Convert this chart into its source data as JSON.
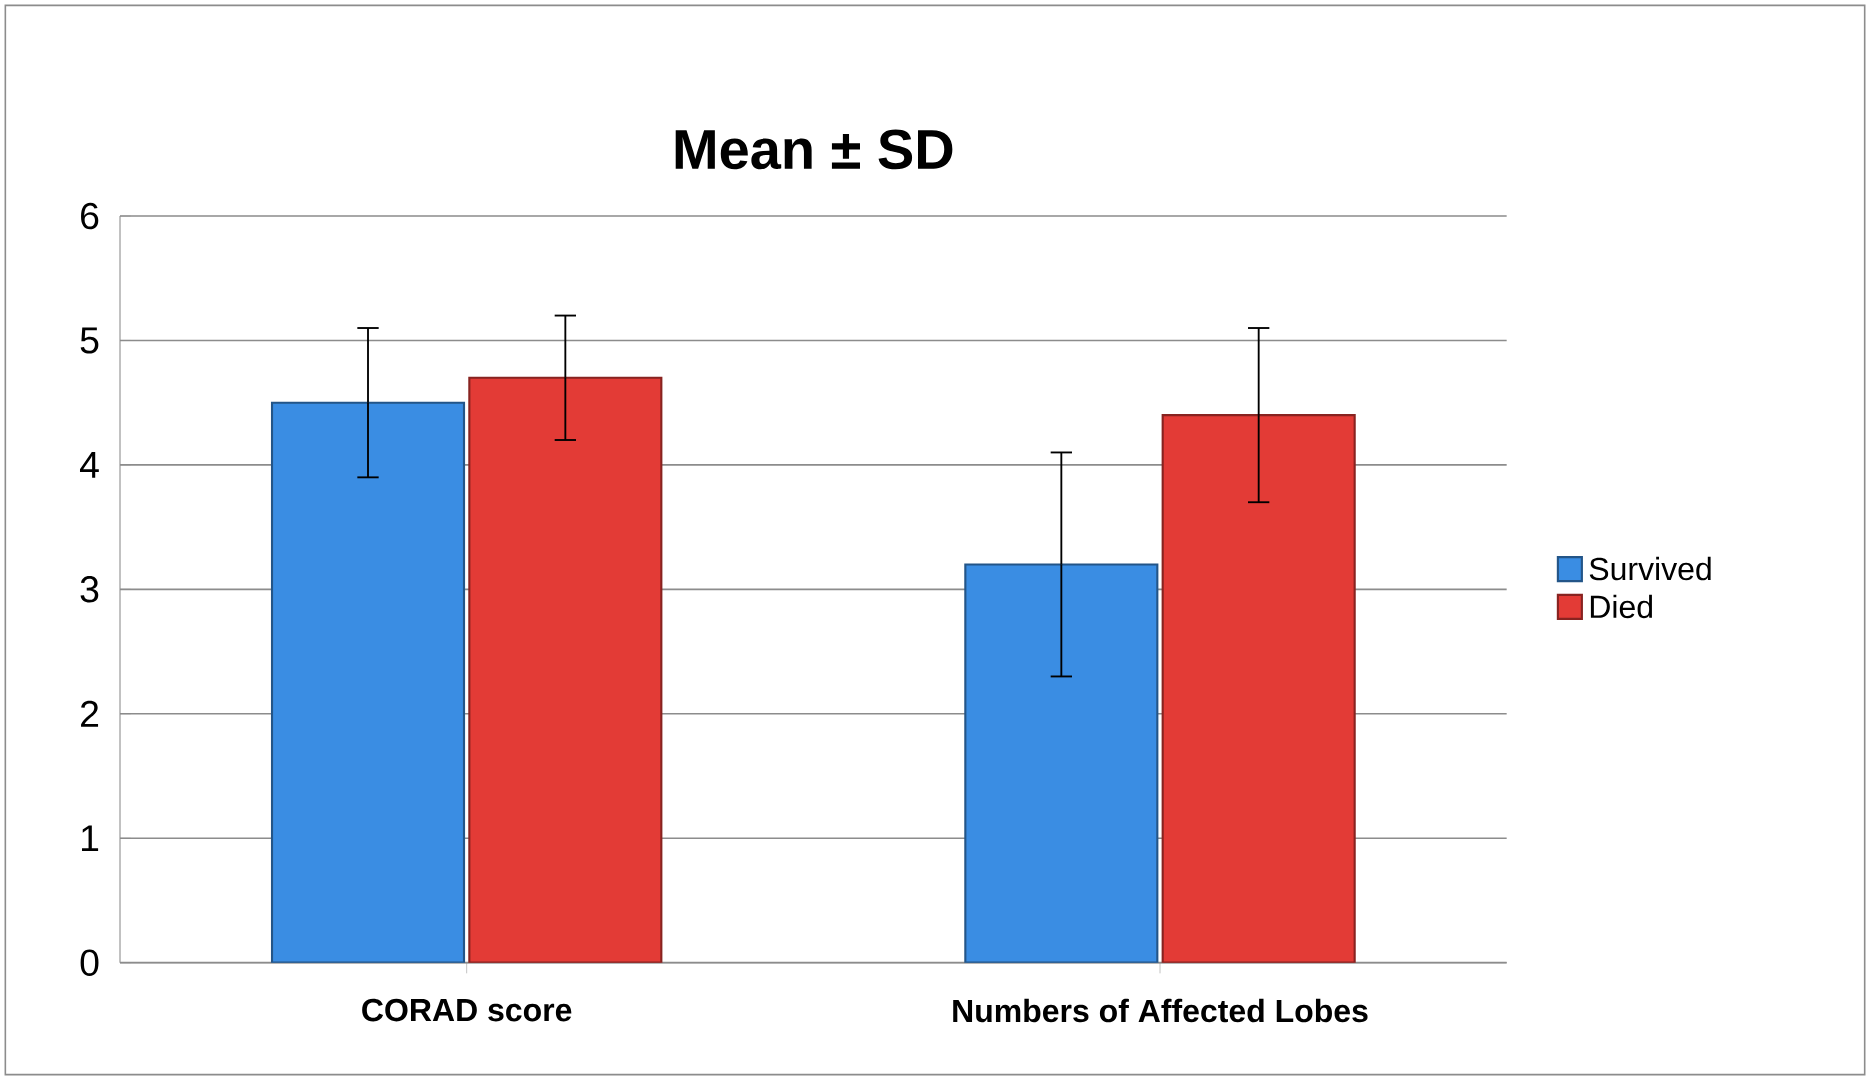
{
  "chart_data": {
    "type": "bar",
    "title": "Mean ± SD",
    "categories": [
      "CORAD score",
      "Numbers of Affected Lobes"
    ],
    "series": [
      {
        "name": "Survived",
        "color": "#3a8de3",
        "values": [
          4.5,
          3.2
        ],
        "errors": [
          [
            3.9,
            5.1
          ],
          [
            2.3,
            4.1
          ]
        ]
      },
      {
        "name": "Died",
        "color": "#e33b36",
        "values": [
          4.7,
          4.4
        ],
        "errors": [
          [
            4.2,
            5.2
          ],
          [
            3.7,
            5.1
          ]
        ]
      }
    ],
    "ylim": [
      0,
      6
    ],
    "yticks": [
      0,
      1,
      2,
      3,
      4,
      5,
      6
    ],
    "grid": "y",
    "legend": "right"
  }
}
